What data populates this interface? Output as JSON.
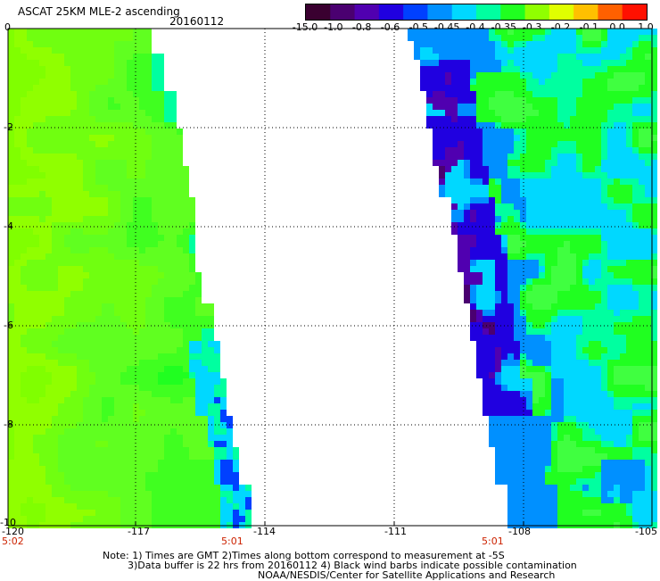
{
  "header": {
    "title": "ASCAT 25KM MLE-2 ascending",
    "date": "20160112"
  },
  "colorbar": {
    "ticks": [
      "-15.0",
      "-1.0",
      "-0.8",
      "-0.6",
      "-0.5",
      "-0.45",
      "-0.4",
      "-0.35",
      "-0.3",
      "-0.2",
      "-0.1",
      "0.0",
      "1.0"
    ],
    "colors": [
      "#3a0030",
      "#4a0070",
      "#5000b0",
      "#2000e0",
      "#0040ff",
      "#0090ff",
      "#00d8ff",
      "#00ffa0",
      "#20ff20",
      "#90ff00",
      "#e0ff00",
      "#ffc000",
      "#ff6000",
      "#ff1000"
    ]
  },
  "map": {
    "xticks": [
      "-120",
      "-117",
      "-114",
      "-111",
      "-108",
      "-105"
    ],
    "yticks": [
      "0",
      "-2",
      "-4",
      "-6",
      "-8",
      "-10"
    ],
    "gridlines": "dotted"
  },
  "times": {
    "left": "5:02",
    "middle": "5:01",
    "right": "5:01"
  },
  "footer": {
    "line1": "Note: 1) Times are GMT 2)Times along bottom correspond to measurement at -5S",
    "line2": "3)Data buffer is 22 hrs from 20160112 4) Black wind barbs indicate possible contamination",
    "line3": "NOAA/NESDIS/Center for Satellite Applications and Research"
  }
}
